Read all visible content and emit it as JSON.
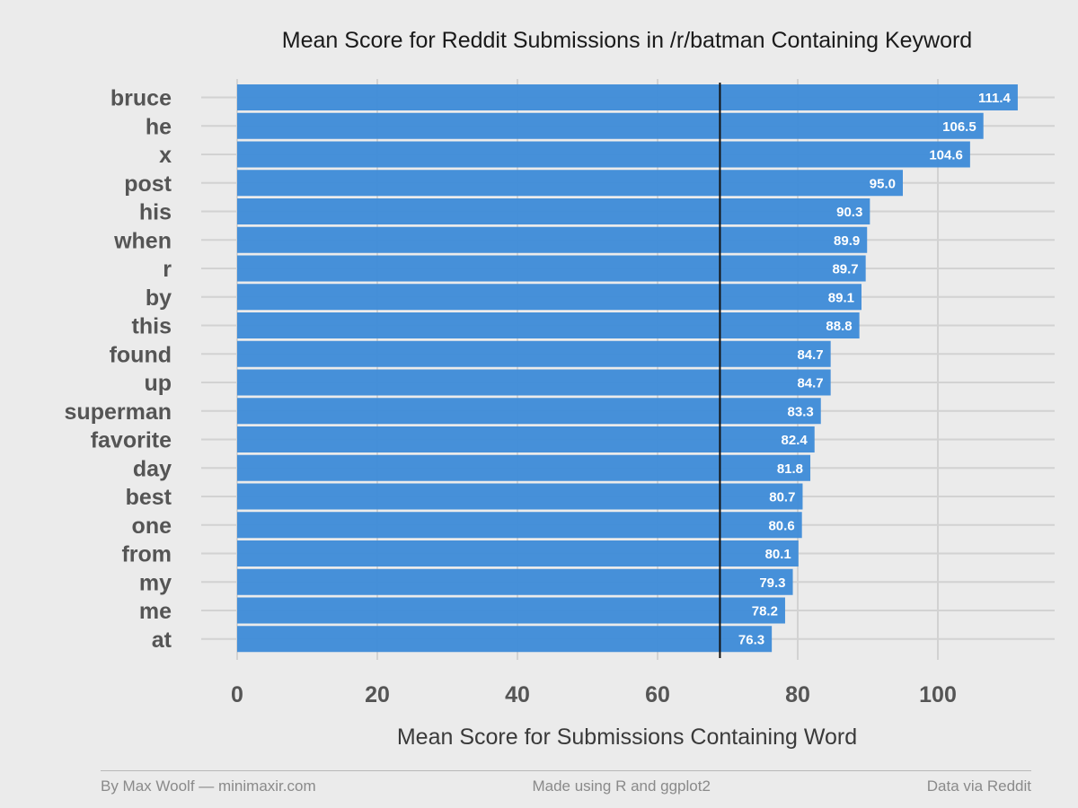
{
  "chart_data": {
    "type": "bar",
    "orientation": "horizontal",
    "title": "Mean Score for Reddit Submissions in /r/batman Containing Keyword",
    "xlabel": "Mean Score for Submissions Containing Word",
    "ylabel": "",
    "xlim": [
      0,
      114
    ],
    "x_ticks": [
      0,
      20,
      40,
      60,
      80,
      100
    ],
    "grid": true,
    "bar_color": "#3d8bd8",
    "reference_line": 68.9,
    "categories": [
      "bruce",
      "he",
      "x",
      "post",
      "his",
      "when",
      "r",
      "by",
      "this",
      "found",
      "up",
      "superman",
      "favorite",
      "day",
      "best",
      "one",
      "from",
      "my",
      "me",
      "at"
    ],
    "values": [
      111.4,
      106.5,
      104.6,
      95.0,
      90.3,
      89.9,
      89.7,
      89.1,
      88.8,
      84.7,
      84.7,
      83.3,
      82.4,
      81.8,
      80.7,
      80.6,
      80.1,
      79.3,
      78.2,
      76.3
    ],
    "value_labels": [
      "111.4",
      "106.5",
      "104.6",
      "95.0",
      "90.3",
      "89.9",
      "89.7",
      "89.1",
      "88.8",
      "84.7",
      "84.7",
      "83.3",
      "82.4",
      "81.8",
      "80.7",
      "80.6",
      "80.1",
      "79.3",
      "78.2",
      "76.3"
    ]
  },
  "footer": {
    "left": "By Max Woolf — minimaxir.com",
    "center": "Made using R and ggplot2",
    "right": "Data via Reddit"
  }
}
